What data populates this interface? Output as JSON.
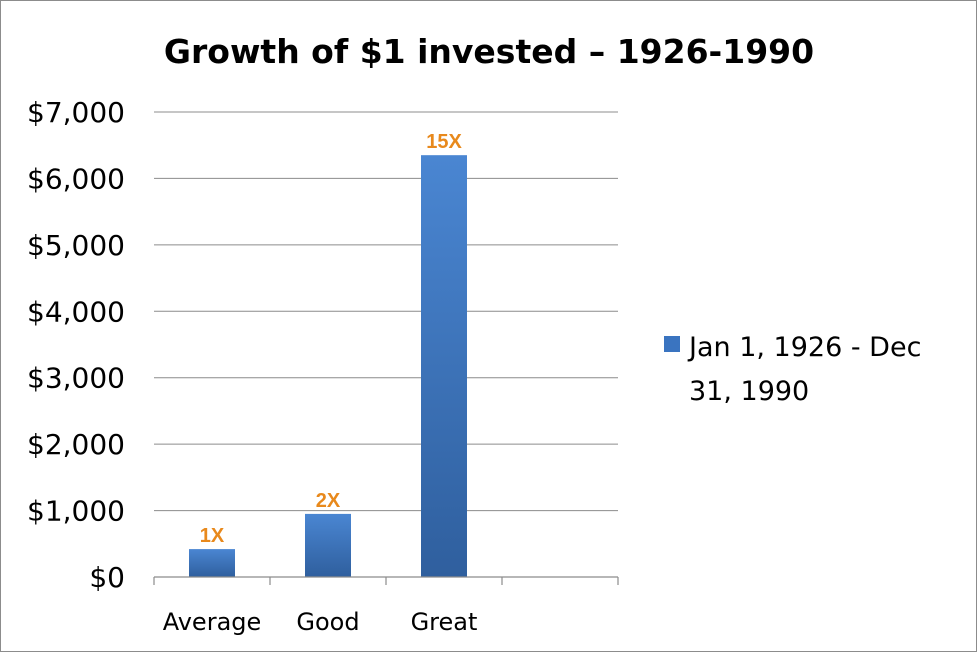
{
  "chart_data": {
    "type": "bar",
    "title": "Growth of $1 invested – 1926-1990",
    "categories": [
      "Average",
      "Good",
      "Great",
      ""
    ],
    "series": [
      {
        "name": "Jan 1, 1926 - Dec 31, 1990",
        "values": [
          420,
          950,
          6350,
          null
        ],
        "data_labels": [
          "1X",
          "2X",
          "15X",
          ""
        ]
      }
    ],
    "y_ticks": [
      "$0",
      "$1,000",
      "$2,000",
      "$3,000",
      "$4,000",
      "$5,000",
      "$6,000",
      "$7,000"
    ],
    "ylim": [
      0,
      7000
    ],
    "grid": true,
    "legend": {
      "placement": "right",
      "lines": [
        "Jan 1, 1926 - Dec",
        "31, 1990"
      ]
    },
    "colors": {
      "bar": "#3a74c0",
      "data_label": "#e8891c",
      "grid": "#8c8c8c"
    }
  }
}
